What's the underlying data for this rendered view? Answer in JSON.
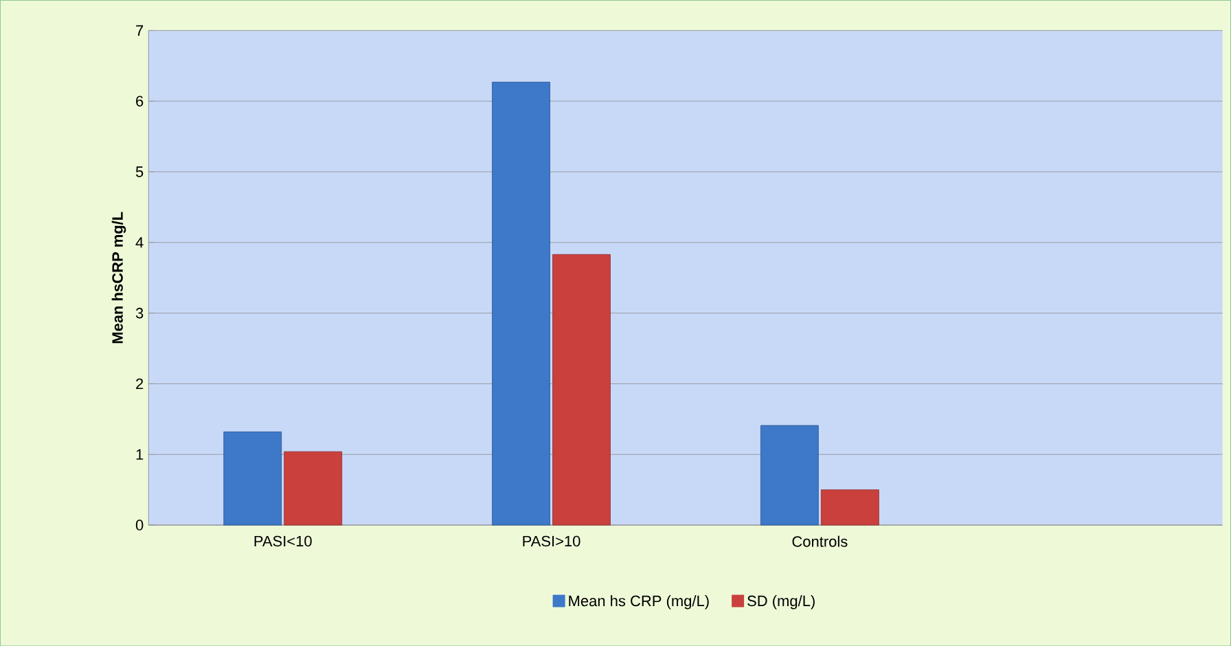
{
  "chart_data": {
    "type": "bar",
    "ylabel": "Mean hsCRP mg/L",
    "categories": [
      "PASI<10",
      "PASI>10",
      "Controls",
      null
    ],
    "series": [
      {
        "name": "Mean hs CRP (mg/L)",
        "color": "#3d78c9",
        "values": [
          1.32,
          6.27,
          1.41,
          null
        ]
      },
      {
        "name": "SD (mg/L)",
        "color": "#c9403d",
        "values": [
          1.04,
          3.83,
          0.5,
          null
        ]
      }
    ],
    "ylim": [
      0,
      7
    ],
    "yticks": [
      0,
      1,
      2,
      3,
      4,
      5,
      6,
      7
    ],
    "grid": "y",
    "legend": "bottom"
  }
}
